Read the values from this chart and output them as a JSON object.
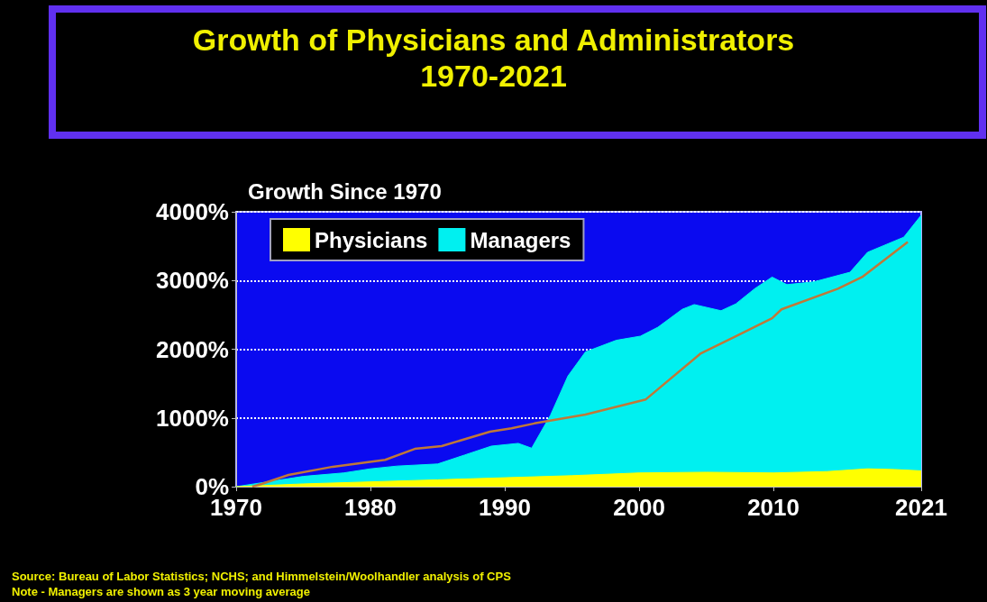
{
  "chart_data": {
    "type": "area",
    "title": "Growth of Physicians and Administrators",
    "subtitle": "1970-2021",
    "ylabel": "Growth Since 1970",
    "xlim": [
      1970,
      2021
    ],
    "xticks": [
      1970,
      1980,
      1990,
      2000,
      2010,
      2021
    ],
    "ylim": [
      0,
      4000
    ],
    "yticks": [
      {
        "value": 0,
        "label": "0%"
      },
      {
        "value": 1000,
        "label": "1000%"
      },
      {
        "value": 2000,
        "label": "2000%"
      },
      {
        "value": 3000,
        "label": "3000%"
      },
      {
        "value": 4000,
        "label": "4000%"
      }
    ],
    "grid": "y",
    "legend": "top left",
    "series": [
      {
        "name": "Managers",
        "color": "#00f0f0",
        "x": [
          1970,
          1972,
          1975,
          1978,
          1980,
          1982,
          1985,
          1987,
          1989,
          1991,
          1992,
          1993.4,
          1994.7,
          1996,
          1998.3,
          2000.1,
          2001.4,
          2003.2,
          2004.1,
          2006.1,
          2007.2,
          2008.6,
          2009.9,
          2011,
          2013,
          2015.7,
          2017,
          2019.7,
          2021
        ],
        "values": [
          0,
          60,
          150,
          200,
          260,
          300,
          330,
          460,
          590,
          630,
          560,
          1040,
          1610,
          1960,
          2130,
          2190,
          2320,
          2580,
          2650,
          2560,
          2660,
          2880,
          3050,
          2940,
          2980,
          3120,
          3410,
          3630,
          3950
        ]
      },
      {
        "name": "Physicians",
        "color": "#ffff00",
        "x": [
          1970,
          1975,
          1980,
          1985,
          1990,
          1995,
          2000,
          2005,
          2010,
          2014,
          2017,
          2019,
          2021
        ],
        "values": [
          0,
          40,
          70,
          100,
          130,
          160,
          200,
          210,
          200,
          220,
          260,
          250,
          230
        ]
      },
      {
        "type": "line",
        "color": "#c07838",
        "x": [
          1971.2,
          1971.9,
          1973.9,
          1977.2,
          1981.1,
          1983.3,
          1985.3,
          1988.9,
          1990.5,
          1992.2,
          1996,
          2000.5,
          2004.6,
          2007.2,
          2009.9,
          2010.6,
          2014.8,
          2016.6,
          2020
        ],
        "values": [
          0,
          40,
          170,
          290,
          390,
          550,
          590,
          800,
          850,
          920,
          1050,
          1270,
          1940,
          2190,
          2450,
          2580,
          2880,
          3050,
          3560
        ]
      }
    ],
    "annotations": [
      "Source: Bureau of Labor Statistics; NCHS; and Himmelstein/Woolhandler analysis of CPS",
      "Note - Managers are shown as 3 year moving average"
    ]
  }
}
